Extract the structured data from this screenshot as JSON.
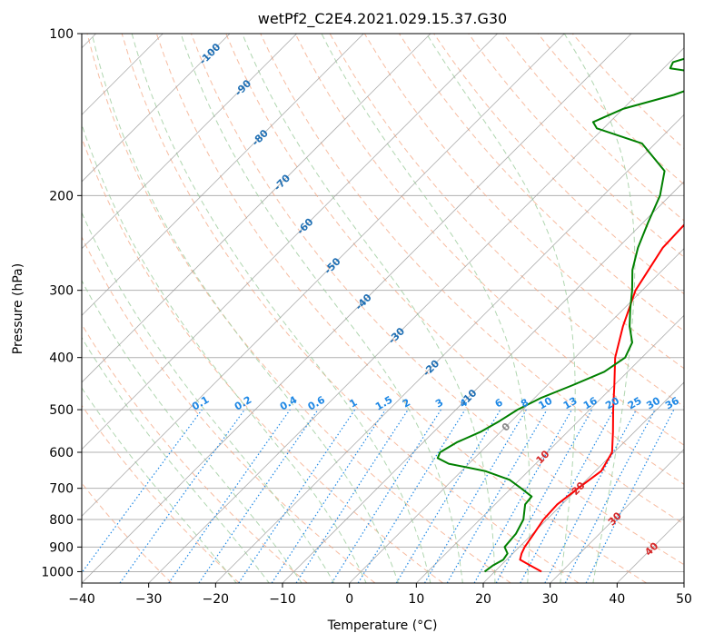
{
  "chart_data": {
    "type": "line",
    "title": "wetPf2_C2E4.2021.029.15.37.G30",
    "xlabel": "Temperature (°C)",
    "ylabel": "Pressure (hPa)",
    "xlim": [
      -40,
      50
    ],
    "ylim": [
      1050,
      100
    ],
    "y_scale": "log",
    "grid": true,
    "x_ticks": [
      -40,
      -30,
      -20,
      -10,
      0,
      10,
      20,
      30,
      40,
      50
    ],
    "y_ticks": [
      1000,
      900,
      800,
      700,
      600,
      500,
      400,
      300,
      200,
      100
    ],
    "series": [
      {
        "color": "#ff0000",
        "points": [
          [
            1000,
            27.0
          ],
          [
            975,
            24.5
          ],
          [
            950,
            22.0
          ],
          [
            925,
            21.3
          ],
          [
            900,
            20.8
          ],
          [
            850,
            20.2
          ],
          [
            800,
            19.5
          ],
          [
            750,
            19.3
          ],
          [
            700,
            20.0
          ],
          [
            650,
            20.9
          ],
          [
            600,
            19.7
          ],
          [
            550,
            16.8
          ],
          [
            500,
            13.5
          ],
          [
            450,
            10.0
          ],
          [
            400,
            6.0
          ],
          [
            350,
            2.5
          ],
          [
            300,
            -1.0
          ],
          [
            250,
            -3.3
          ],
          [
            200,
            -3.8
          ],
          [
            175,
            -1.8
          ],
          [
            150,
            2.3
          ],
          [
            125,
            6.8
          ],
          [
            110,
            10.5
          ],
          [
            100,
            13.5
          ]
        ]
      },
      {
        "color": "#008000",
        "points": [
          [
            1000,
            18.5
          ],
          [
            975,
            18.8
          ],
          [
            950,
            19.5
          ],
          [
            925,
            19.2
          ],
          [
            900,
            17.8
          ],
          [
            850,
            17.5
          ],
          [
            800,
            16.5
          ],
          [
            750,
            14.5
          ],
          [
            725,
            14.3
          ],
          [
            700,
            11.5
          ],
          [
            675,
            8.5
          ],
          [
            650,
            3.5
          ],
          [
            630,
            -3.0
          ],
          [
            615,
            -5.5
          ],
          [
            600,
            -6.0
          ],
          [
            575,
            -5.0
          ],
          [
            550,
            -3.0
          ],
          [
            525,
            -1.8
          ],
          [
            500,
            -0.8
          ],
          [
            475,
            1.0
          ],
          [
            450,
            3.8
          ],
          [
            425,
            6.5
          ],
          [
            400,
            7.5
          ],
          [
            375,
            6.3
          ],
          [
            350,
            3.5
          ],
          [
            325,
            1.0
          ],
          [
            300,
            -1.5
          ],
          [
            275,
            -4.5
          ],
          [
            250,
            -7.0
          ],
          [
            225,
            -9.2
          ],
          [
            200,
            -11.5
          ],
          [
            180,
            -14.5
          ],
          [
            160,
            -22.0
          ],
          [
            150,
            -31.0
          ],
          [
            146,
            -32.5
          ],
          [
            138,
            -30.0
          ],
          [
            130,
            -24.5
          ],
          [
            123,
            -21.0
          ],
          [
            118,
            -24.5
          ],
          [
            116,
            -29.0
          ],
          [
            113,
            -29.5
          ],
          [
            107,
            -25.0
          ],
          [
            102,
            -17.5
          ],
          [
            100,
            -13.5
          ]
        ]
      }
    ],
    "dry_adiabats_c": [
      -30,
      -20,
      -10,
      0,
      10,
      20,
      30,
      40,
      50,
      60,
      70,
      80,
      90,
      100,
      110,
      120,
      130,
      140,
      150,
      160
    ],
    "moist_adiabats_c": [
      -20,
      -15,
      -10,
      -5,
      0,
      5,
      10,
      15,
      20,
      25,
      30,
      35
    ],
    "mixing_ratios": [
      0.1,
      0.2,
      0.4,
      0.6,
      1,
      1.5,
      2,
      3,
      4,
      6,
      8,
      10,
      13,
      16,
      20,
      25,
      30,
      36
    ],
    "mixing_ratio_labels": [
      "0.1",
      "0.2",
      "0.4",
      "0.6",
      "1",
      "1.5",
      "2",
      "3",
      "4",
      "6",
      "8",
      "10",
      "13",
      "16",
      "20",
      "25",
      "30",
      "36"
    ],
    "isotherm_label_pressures": [
      {
        "text": "-100",
        "p": 109
      },
      {
        "text": "-90",
        "p": 126
      },
      {
        "text": "-80",
        "p": 156
      },
      {
        "text": "-70",
        "p": 189
      },
      {
        "text": "-60",
        "p": 228
      },
      {
        "text": "-50",
        "p": 270
      },
      {
        "text": "-40",
        "p": 315
      },
      {
        "text": "-30",
        "p": 364
      },
      {
        "text": "-20",
        "p": 418
      },
      {
        "text": "-10",
        "p": 474
      },
      {
        "text": "0",
        "p": 538
      },
      {
        "text": "10",
        "p": 612
      },
      {
        "text": "20",
        "p": 700
      },
      {
        "text": "30",
        "p": 797
      },
      {
        "text": "40",
        "p": 907
      }
    ],
    "colors": {
      "temperature": "#ff0000",
      "dewpoint": "#008000",
      "isotherm_cold_label": "#1f6fb4",
      "isotherm_warm_label": "#d62728",
      "isotherm_zero_label": "#888888",
      "mixing_ratio": "#1e88e5",
      "dry_adiabat": "#f4a582",
      "moist_adiabat": "#9ccc9c",
      "skewed_isotherm": "#999999",
      "grid": "#b0b0b0"
    }
  }
}
